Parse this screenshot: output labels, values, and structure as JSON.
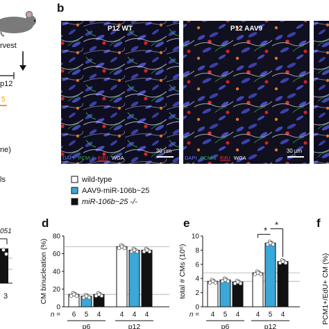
{
  "figure": {
    "panel_letters": {
      "b": "b",
      "d": "d",
      "e": "e",
      "f": "f"
    },
    "schematic": {
      "harvest_text": "rvest",
      "day_text": "p12",
      "orange_text": "5",
      "ne_text": "ne)",
      "ls_text": "ls",
      "mir_label": "051",
      "bar_count": "3"
    },
    "micrographs": {
      "left": {
        "title": "P12 WT",
        "scale": "30 µm"
      },
      "right": {
        "title": "P12 AAV9",
        "scale": "30 µm"
      },
      "stain_legend": {
        "dapi": "DAPI",
        "pcm": "PCM-1",
        "edu": "EdU",
        "wga": "WGA"
      }
    },
    "legend": [
      {
        "label": "wild-type",
        "color": "#ffffff"
      },
      {
        "label": "AAV9-miR-106b~25",
        "color": "#3aa8d8"
      },
      {
        "label": "miR-106b~25 -/-",
        "color": "#111111"
      }
    ],
    "n_prefix": "n =",
    "right_edge_ylabel": "PCM1+/EdU+ CM (%)",
    "colors": {
      "wt": "#ffffff",
      "aav": "#3aa8d8",
      "ko": "#111111",
      "orange": "#e8a21c",
      "edu_red": "#d62020",
      "pcm_green": "#2fa84a"
    }
  },
  "chart_data": [
    {
      "panel": "d",
      "type": "bar",
      "ylabel": "CM binucleation (%)",
      "ylim": [
        0,
        80
      ],
      "yticks": [
        "0",
        "20",
        "40",
        "60",
        "80"
      ],
      "groups": [
        "p6",
        "p12"
      ],
      "series": [
        {
          "name": "wild-type",
          "values": [
            14,
            68
          ],
          "n": [
            "6",
            "4"
          ]
        },
        {
          "name": "AAV9-miR-106b~25",
          "values": [
            12,
            64
          ],
          "n": [
            "5",
            "4"
          ]
        },
        {
          "name": "miR-106b~25 -/-",
          "values": [
            14,
            64
          ],
          "n": [
            "4",
            "4"
          ]
        }
      ]
    },
    {
      "panel": "e",
      "type": "bar",
      "ylabel": "total # CMs (10⁶)",
      "ylim": [
        0,
        10
      ],
      "yticks": [
        "0",
        "2",
        "4",
        "6",
        "8",
        "10"
      ],
      "groups": [
        "p6",
        "p12"
      ],
      "series": [
        {
          "name": "wild-type",
          "values": [
            3.6,
            4.8
          ],
          "n": [
            "4",
            "4"
          ]
        },
        {
          "name": "AAV9-miR-106b~25",
          "values": [
            3.8,
            9.0
          ],
          "n": [
            "5",
            "5"
          ]
        },
        {
          "name": "miR-106b~25 -/-",
          "values": [
            3.5,
            6.4
          ],
          "n": [
            "4",
            "4"
          ]
        }
      ],
      "significance": [
        "*",
        "*"
      ]
    }
  ]
}
